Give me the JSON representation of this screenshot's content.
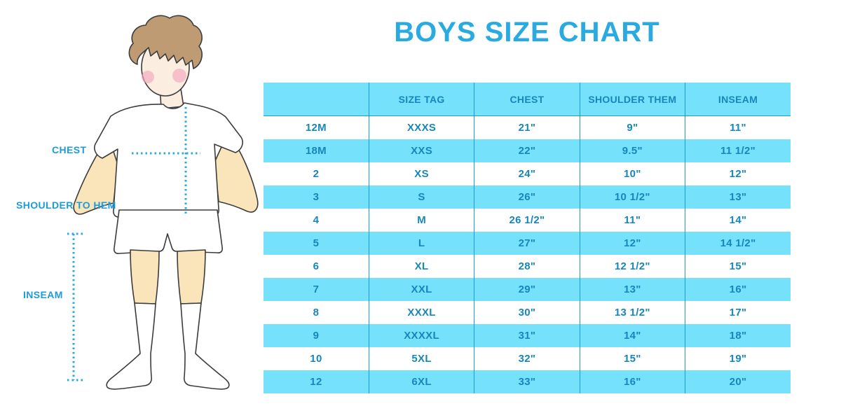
{
  "page": {
    "title": "BOYS SIZE CHART"
  },
  "figure": {
    "description": "boy-in-tshirt-shorts-and-knee-socks",
    "labels": {
      "chest": "CHEST",
      "shoulder_to_hem": "SHOULDER TO HEM",
      "inseam": "INSEAM"
    }
  },
  "chart_data": {
    "type": "table",
    "title": "BOYS SIZE CHART",
    "columns": [
      "",
      "SIZE TAG",
      "CHEST",
      "SHOULDER THEM",
      "INSEAM"
    ],
    "rows": [
      [
        "12M",
        "XXXS",
        "21\"",
        "9\"",
        "11\""
      ],
      [
        "18M",
        "XXS",
        "22\"",
        "9.5\"",
        "11 1/2\""
      ],
      [
        "2",
        "XS",
        "24\"",
        "10\"",
        "12\""
      ],
      [
        "3",
        "S",
        "26\"",
        "10 1/2\"",
        "13\""
      ],
      [
        "4",
        "M",
        "26 1/2\"",
        "11\"",
        "14\""
      ],
      [
        "5",
        "L",
        "27\"",
        "12\"",
        "14 1/2\""
      ],
      [
        "6",
        "XL",
        "28\"",
        "12 1/2\"",
        "15\""
      ],
      [
        "7",
        "XXL",
        "29\"",
        "13\"",
        "16\""
      ],
      [
        "8",
        "XXXL",
        "30\"",
        "13 1/2\"",
        "17\""
      ],
      [
        "9",
        "XXXXL",
        "31\"",
        "14\"",
        "18\""
      ],
      [
        "10",
        "5XL",
        "32\"",
        "15\"",
        "19\""
      ],
      [
        "12",
        "6XL",
        "33\"",
        "16\"",
        "20\""
      ]
    ],
    "layout": {
      "header_background": "alternating rows cyan/white, header cyan",
      "grid": "vertical column separators and header underline only"
    }
  },
  "colors": {
    "accent_blue": "#29ABE2",
    "row_cyan": "#76E1FA",
    "table_text_blue": "#1786BD",
    "grid_line_blue": "#1E9CD6",
    "hair_brown": "#BE9B72",
    "face_skin": "#FBEEE1",
    "limb_skin": "#FAE4BA",
    "blush_pink": "#F2A7BE",
    "outline_gray": "#3C3C3C"
  }
}
